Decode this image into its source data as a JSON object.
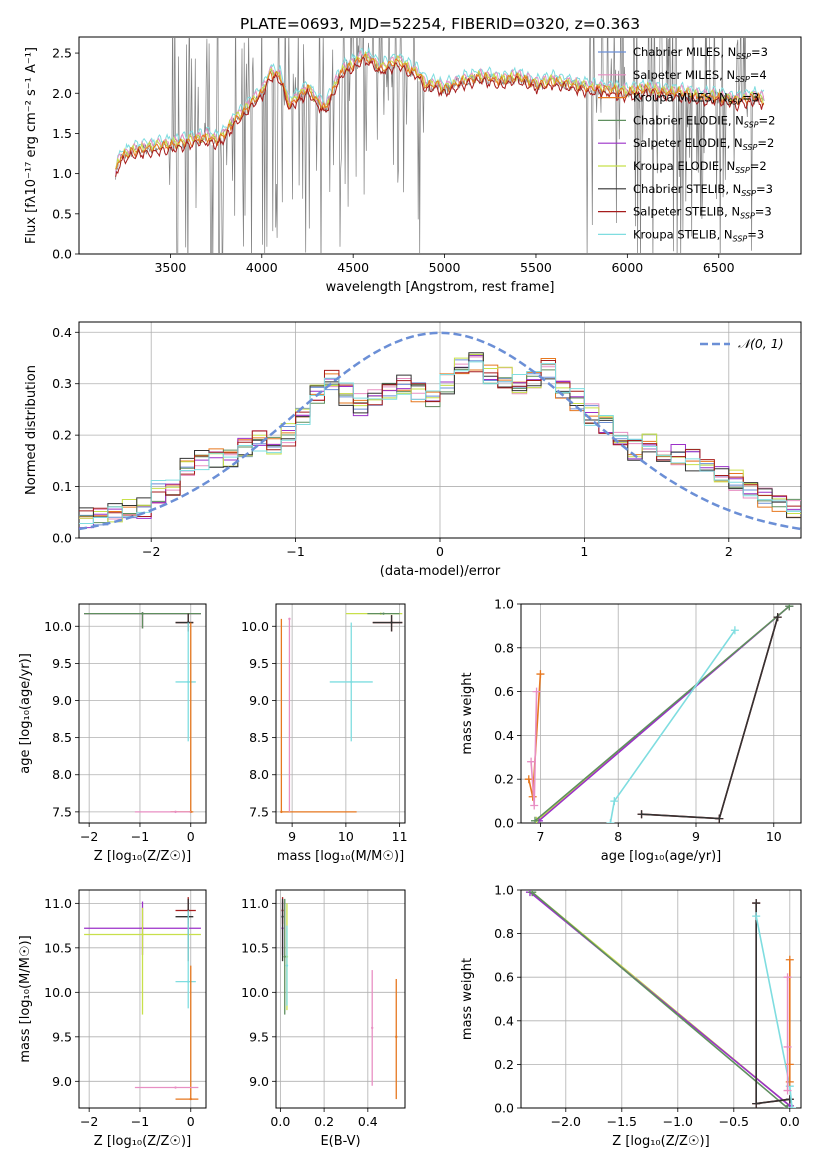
{
  "figure_title": "PLATE=0693, MJD=52254, FIBERID=0320, z=0.363",
  "colors": {
    "Chabrier MILES": "#6b8fd6",
    "Salpeter MILES": "#e88fc3",
    "Kroupa MILES": "#e6771e",
    "Chabrier ELODIE": "#5f8f5f",
    "Salpeter ELODIE": "#9b30c9",
    "Kroupa ELODIE": "#c8e04a",
    "Chabrier STELIB": "#333333",
    "Salpeter STELIB": "#a61c1c",
    "Kroupa STELIB": "#7fdde0",
    "data": "#808080",
    "normal": "#6b8fd6"
  },
  "chart_data": [
    {
      "id": "spectrum",
      "type": "line",
      "xlabel": "wavelength [Angstrom, rest frame]",
      "ylabel": "Flux [f$_\\lambda$10$^{-17}$ erg cm$^{-2}$ s$^{-1}$ A$^{-1}$]",
      "ylabel_display": "Flux [fλ10⁻¹⁷ erg cm⁻² s⁻¹ A⁻¹]",
      "xlim": [
        3000,
        6950
      ],
      "ylim": [
        0,
        2.7
      ],
      "xticks": [
        3500,
        4000,
        4500,
        5000,
        5500,
        6000,
        6500
      ],
      "yticks": [
        0.0,
        0.5,
        1.0,
        1.5,
        2.0,
        2.5
      ],
      "legend": [
        {
          "name": "Chabrier MILES",
          "label": "Chabrier MILES, N",
          "sub": "SSP",
          "tail": "=3"
        },
        {
          "name": "Salpeter MILES",
          "label": "Salpeter MILES, N",
          "sub": "SSP",
          "tail": "=4"
        },
        {
          "name": "Kroupa MILES",
          "label": "Kroupa MILES, N",
          "sub": "SSP",
          "tail": "=3"
        },
        {
          "name": "Chabrier ELODIE",
          "label": "Chabrier ELODIE, N",
          "sub": "SSP",
          "tail": "=2"
        },
        {
          "name": "Salpeter ELODIE",
          "label": "Salpeter ELODIE, N",
          "sub": "SSP",
          "tail": "=2"
        },
        {
          "name": "Kroupa ELODIE",
          "label": "Kroupa ELODIE, N",
          "sub": "SSP",
          "tail": "=2"
        },
        {
          "name": "Chabrier STELIB",
          "label": "Chabrier STELIB, N",
          "sub": "SSP",
          "tail": "=3"
        },
        {
          "name": "Salpeter STELIB",
          "label": "Salpeter STELIB, N",
          "sub": "SSP",
          "tail": "=3"
        },
        {
          "name": "Kroupa STELIB",
          "label": "Kroupa STELIB, N",
          "sub": "SSP",
          "tail": "=3"
        }
      ],
      "legend_position": "top-right",
      "model_envelope": {
        "wavelength": [
          3200,
          3210,
          3230,
          3300,
          3400,
          3500,
          3600,
          3700,
          3760,
          3800,
          3850,
          3900,
          3950,
          4000,
          4050,
          4100,
          4150,
          4200,
          4250,
          4300,
          4350,
          4400,
          4450,
          4500,
          4550,
          4600,
          4650,
          4700,
          4750,
          4800,
          4850,
          4900,
          4950,
          5000,
          5100,
          5200,
          5300,
          5400,
          5500,
          5600,
          5700,
          5800,
          5900,
          6000,
          6100,
          6200,
          6300,
          6400,
          6500,
          6600,
          6700,
          6750
        ],
        "flux": [
          1.0,
          1.1,
          1.2,
          1.28,
          1.32,
          1.35,
          1.4,
          1.45,
          1.4,
          1.5,
          1.65,
          1.75,
          1.9,
          2.0,
          2.25,
          2.2,
          1.85,
          1.95,
          2.05,
          1.9,
          1.8,
          2.1,
          2.3,
          2.35,
          2.45,
          2.4,
          2.3,
          2.35,
          2.4,
          2.3,
          2.25,
          2.1,
          2.1,
          2.05,
          2.15,
          2.2,
          2.15,
          2.2,
          2.1,
          2.15,
          2.1,
          2.05,
          2.05,
          2.0,
          2.05,
          2.0,
          2.0,
          1.95,
          1.95,
          1.9,
          1.95,
          1.9
        ]
      },
      "data_range": [
        3200,
        6750
      ]
    },
    {
      "id": "residuals",
      "type": "histogram",
      "xlabel": "(data-model)/error",
      "ylabel": "Normed distribution",
      "xlim": [
        -2.5,
        2.5
      ],
      "ylim": [
        0,
        0.42
      ],
      "xticks": [
        -2,
        -1,
        0,
        1,
        2
      ],
      "yticks": [
        0.0,
        0.1,
        0.2,
        0.3,
        0.4
      ],
      "bins": [
        -2.5,
        -2.4,
        -2.3,
        -2.2,
        -2.1,
        -2.0,
        -1.9,
        -1.8,
        -1.7,
        -1.6,
        -1.5,
        -1.4,
        -1.3,
        -1.2,
        -1.1,
        -1.0,
        -0.9,
        -0.8,
        -0.7,
        -0.6,
        -0.5,
        -0.4,
        -0.3,
        -0.2,
        -0.1,
        0.0,
        0.1,
        0.2,
        0.3,
        0.4,
        0.5,
        0.6,
        0.7,
        0.8,
        0.9,
        1.0,
        1.1,
        1.2,
        1.3,
        1.4,
        1.5,
        1.6,
        1.7,
        1.8,
        1.9,
        2.0,
        2.1,
        2.2,
        2.3,
        2.4,
        2.5
      ],
      "hist_mean": [
        0.04,
        0.045,
        0.05,
        0.055,
        0.06,
        0.09,
        0.1,
        0.14,
        0.15,
        0.16,
        0.16,
        0.18,
        0.19,
        0.18,
        0.2,
        0.24,
        0.28,
        0.31,
        0.28,
        0.26,
        0.28,
        0.29,
        0.3,
        0.28,
        0.27,
        0.3,
        0.33,
        0.34,
        0.32,
        0.31,
        0.3,
        0.31,
        0.33,
        0.29,
        0.27,
        0.24,
        0.22,
        0.19,
        0.17,
        0.18,
        0.16,
        0.16,
        0.15,
        0.14,
        0.12,
        0.11,
        0.09,
        0.08,
        0.07,
        0.06
      ],
      "normal_label": "𝒩(0, 1)",
      "normal_mu": 0,
      "normal_sigma": 1,
      "legend_position": "top-right"
    },
    {
      "id": "z-age",
      "type": "errorbar",
      "xlabel": "Z [log₁₀(Z/Z☉)]",
      "ylabel": "age  [log₁₀(age/yr)]",
      "xlim": [
        -2.2,
        0.3
      ],
      "ylim": [
        7.35,
        10.3
      ],
      "xticks": [
        -2,
        -1,
        0
      ],
      "yticks": [
        7.5,
        8.0,
        8.5,
        9.0,
        9.5,
        10.0
      ],
      "ytick_labels": [
        "7.5",
        "8.0",
        "8.5",
        "9.0",
        "9.5",
        "10.0"
      ],
      "series": [
        {
          "name": "Kroupa ELODIE",
          "x": -0.95,
          "xerr": [
            1.15,
            1.15
          ],
          "y": 10.17,
          "yerr": [
            0.2,
            0.02
          ]
        },
        {
          "name": "Salpeter ELODIE",
          "x": -0.95,
          "xerr": [
            1.15,
            1.15
          ],
          "y": 10.17,
          "yerr": [
            0.2,
            0.02
          ]
        },
        {
          "name": "Chabrier ELODIE",
          "x": -0.95,
          "xerr": [
            1.15,
            1.15
          ],
          "y": 10.17,
          "yerr": [
            0.2,
            0.02
          ]
        },
        {
          "name": "Salpeter STELIB",
          "x": -0.05,
          "xerr": [
            0.25,
            0.1
          ],
          "y": 10.05,
          "yerr": [
            0.12,
            0.12
          ]
        },
        {
          "name": "Chabrier STELIB",
          "x": -0.05,
          "xerr": [
            0.25,
            0.1
          ],
          "y": 10.05,
          "yerr": [
            0.12,
            0.12
          ]
        },
        {
          "name": "Kroupa STELIB",
          "x": -0.05,
          "xerr": [
            0.25,
            0.15
          ],
          "y": 9.25,
          "yerr": [
            0.8,
            0.8
          ]
        },
        {
          "name": "Kroupa MILES",
          "x": 0.0,
          "xerr": [
            0.4,
            0.05
          ],
          "y": 7.5,
          "yerr": [
            0.0,
            2.55
          ]
        },
        {
          "name": "Salpeter MILES",
          "x": -0.3,
          "xerr": [
            0.8,
            0.3
          ],
          "y": 7.5,
          "yerr": [
            0.0,
            0.0
          ]
        }
      ]
    },
    {
      "id": "mass-age",
      "type": "errorbar",
      "xlabel": "mass [log₁₀(M/M☉)]",
      "ylabel": "",
      "xlim": [
        8.7,
        11.1
      ],
      "ylim": [
        7.35,
        10.3
      ],
      "xticks": [
        9,
        10,
        11
      ],
      "yticks": [
        7.5,
        8.0,
        8.5,
        9.0,
        9.5,
        10.0
      ],
      "ytick_labels": [
        "7.5",
        "8.0",
        "8.5",
        "9.0",
        "9.5",
        "10.0"
      ],
      "series": [
        {
          "name": "Kroupa ELODIE",
          "x": 10.65,
          "xerr": [
            0.0,
            0.0
          ],
          "y": 10.17,
          "yerr": [
            0.0,
            0.0
          ],
          "xspan": [
            10.0,
            11.05
          ]
        },
        {
          "name": "Chabrier ELODIE",
          "x": 10.7,
          "xerr": [
            0.3,
            0.3
          ],
          "y": 10.17,
          "yerr": [
            0.0,
            0.0
          ]
        },
        {
          "name": "Salpeter STELIB",
          "x": 10.85,
          "xerr": [
            0.35,
            0.2
          ],
          "y": 10.05,
          "yerr": [
            0.12,
            0.1
          ]
        },
        {
          "name": "Chabrier STELIB",
          "x": 10.85,
          "xerr": [
            0.35,
            0.2
          ],
          "y": 10.05,
          "yerr": [
            0.12,
            0.1
          ]
        },
        {
          "name": "Kroupa STELIB",
          "x": 10.1,
          "xerr": [
            0.4,
            0.4
          ],
          "y": 9.25,
          "yerr": [
            0.8,
            0.8
          ]
        },
        {
          "name": "Kroupa MILES",
          "x": 8.8,
          "xerr": [
            0.0,
            1.4
          ],
          "y": 7.5,
          "yerr": [
            0.0,
            2.6
          ]
        },
        {
          "name": "Salpeter MILES",
          "x": 8.95,
          "xerr": [
            0.0,
            0.0
          ],
          "y": 10.1,
          "yerr": [
            2.6,
            0.0
          ]
        }
      ]
    },
    {
      "id": "age-weight",
      "type": "line",
      "xlabel": "age  [log₁₀(age/yr)]",
      "ylabel": "mass weight",
      "xlim": [
        6.75,
        10.35
      ],
      "ylim": [
        0,
        1.0
      ],
      "xticks": [
        7,
        8,
        9,
        10
      ],
      "yticks": [
        0.0,
        0.2,
        0.4,
        0.6,
        0.8,
        1.0
      ],
      "series": [
        {
          "name": "Kroupa ELODIE",
          "x": [
            6.95,
            10.2
          ],
          "y": [
            0.01,
            0.99
          ]
        },
        {
          "name": "Salpeter ELODIE",
          "x": [
            6.98,
            10.2
          ],
          "y": [
            0.01,
            0.99
          ]
        },
        {
          "name": "Chabrier ELODIE",
          "x": [
            6.93,
            10.2
          ],
          "y": [
            0.01,
            0.99
          ]
        },
        {
          "name": "Salpeter STELIB",
          "x": [
            8.3,
            9.3,
            10.05
          ],
          "y": [
            0.04,
            0.02,
            0.94
          ]
        },
        {
          "name": "Chabrier STELIB",
          "x": [
            8.3,
            9.3,
            10.05
          ],
          "y": [
            0.04,
            0.02,
            0.94
          ]
        },
        {
          "name": "Kroupa STELIB",
          "x": [
            7.9,
            7.95,
            9.5
          ],
          "y": [
            0.0,
            0.1,
            0.88
          ]
        },
        {
          "name": "Kroupa MILES",
          "x": [
            6.85,
            6.9,
            7.0
          ],
          "y": [
            0.2,
            0.12,
            0.68
          ]
        },
        {
          "name": "Salpeter MILES",
          "x": [
            6.88,
            6.92,
            6.95
          ],
          "y": [
            0.28,
            0.08,
            0.6
          ]
        }
      ]
    },
    {
      "id": "z-mass",
      "type": "errorbar",
      "xlabel": "Z [log₁₀(Z/Z☉)]",
      "ylabel": "mass [log₁₀(M/M☉)]",
      "xlim": [
        -2.2,
        0.3
      ],
      "ylim": [
        8.7,
        11.15
      ],
      "xticks": [
        -2,
        -1,
        0
      ],
      "yticks": [
        9.0,
        9.5,
        10.0,
        10.5,
        11.0
      ],
      "ytick_labels": [
        "9.0",
        "9.5",
        "10.0",
        "10.5",
        "11.0"
      ],
      "series": [
        {
          "name": "Salpeter ELODIE",
          "x": -0.95,
          "xerr": [
            1.15,
            1.15
          ],
          "y": 10.72,
          "yerr": [
            0.3,
            0.3
          ]
        },
        {
          "name": "Kroupa ELODIE",
          "x": -0.95,
          "xerr": [
            1.15,
            1.15
          ],
          "y": 10.65,
          "yerr": [
            0.9,
            0.3
          ]
        },
        {
          "name": "Salpeter STELIB",
          "x": -0.05,
          "xerr": [
            0.25,
            0.15
          ],
          "y": 10.92,
          "yerr": [
            0.15,
            0.15
          ]
        },
        {
          "name": "Chabrier STELIB",
          "x": -0.05,
          "xerr": [
            0.25,
            0.1
          ],
          "y": 10.85,
          "yerr": [
            0.5,
            0.2
          ]
        },
        {
          "name": "Kroupa STELIB",
          "x": -0.05,
          "xerr": [
            0.25,
            0.15
          ],
          "y": 10.12,
          "yerr": [
            0.3,
            0.8
          ]
        },
        {
          "name": "Kroupa MILES",
          "x": 0.0,
          "xerr": [
            0.3,
            0.15
          ],
          "y": 8.8,
          "yerr": [
            0.0,
            1.5
          ]
        },
        {
          "name": "Salpeter MILES",
          "x": -0.3,
          "xerr": [
            0.8,
            0.45
          ],
          "y": 8.93,
          "yerr": [
            0.0,
            0.0
          ]
        }
      ]
    },
    {
      "id": "ebv-mass",
      "type": "errorbar",
      "xlabel": "E(B-V)",
      "ylabel": "",
      "xlim": [
        -0.02,
        0.57
      ],
      "ylim": [
        8.7,
        11.15
      ],
      "xticks": [
        0.0,
        0.2,
        0.4
      ],
      "xtick_labels": [
        "0.0",
        "0.2",
        "0.4"
      ],
      "yticks": [
        9.0,
        9.5,
        10.0,
        10.5,
        11.0
      ],
      "ytick_labels": [
        "9.0",
        "9.5",
        "10.0",
        "10.5",
        "11.0"
      ],
      "series": [
        {
          "name": "Salpeter ELODIE",
          "x": 0.01,
          "y": 10.72,
          "yerr": [
            0.3,
            0.3
          ]
        },
        {
          "name": "Kroupa ELODIE",
          "x": 0.03,
          "y": 10.4,
          "yerr": [
            0.6,
            0.6
          ]
        },
        {
          "name": "Chabrier ELODIE",
          "x": 0.02,
          "y": 10.4,
          "yerr": [
            0.65,
            0.65
          ]
        },
        {
          "name": "Salpeter STELIB",
          "x": 0.01,
          "y": 10.92,
          "yerr": [
            0.15,
            0.15
          ]
        },
        {
          "name": "Chabrier STELIB",
          "x": 0.01,
          "y": 10.85,
          "yerr": [
            0.5,
            0.2
          ]
        },
        {
          "name": "Kroupa STELIB",
          "x": 0.03,
          "y": 10.3,
          "yerr": [
            0.45,
            0.45
          ]
        },
        {
          "name": "Salpeter MILES",
          "x": 0.42,
          "y": 9.6,
          "yerr": [
            0.65,
            0.65
          ]
        },
        {
          "name": "Kroupa MILES",
          "x": 0.53,
          "y": 9.5,
          "yerr": [
            0.7,
            0.65
          ]
        }
      ]
    },
    {
      "id": "z-weight",
      "type": "line",
      "xlabel": "Z [log₁₀(Z/Z☉)]",
      "ylabel": "mass weight",
      "xlim": [
        -2.4,
        0.1
      ],
      "ylim": [
        0,
        1.0
      ],
      "xticks": [
        -2.0,
        -1.5,
        -1.0,
        -0.5,
        0.0
      ],
      "xtick_labels": [
        "−2.0",
        "−1.5",
        "−1.0",
        "−0.5",
        "0.0"
      ],
      "yticks": [
        0.0,
        0.2,
        0.4,
        0.6,
        0.8,
        1.0
      ],
      "series": [
        {
          "name": "Kroupa ELODIE",
          "x": [
            -2.3,
            0.0
          ],
          "y": [
            0.99,
            0.01
          ]
        },
        {
          "name": "Salpeter ELODIE",
          "x": [
            -2.32,
            0.0
          ],
          "y": [
            0.99,
            0.01
          ]
        },
        {
          "name": "Chabrier ELODIE",
          "x": [
            -2.3,
            -0.02
          ],
          "y": [
            0.99,
            0.0
          ]
        },
        {
          "name": "Salpeter STELIB",
          "x": [
            -0.3,
            -0.3,
            0.0
          ],
          "y": [
            0.94,
            0.02,
            0.04
          ]
        },
        {
          "name": "Chabrier STELIB",
          "x": [
            -0.3,
            -0.3,
            0.0
          ],
          "y": [
            0.94,
            0.02,
            0.04
          ]
        },
        {
          "name": "Kroupa STELIB",
          "x": [
            -0.3,
            0.0,
            0.02
          ],
          "y": [
            0.88,
            0.1,
            0.0
          ]
        },
        {
          "name": "Kroupa MILES",
          "x": [
            0.0,
            0.0,
            0.0
          ],
          "y": [
            0.68,
            0.2,
            0.12
          ]
        },
        {
          "name": "Salpeter MILES",
          "x": [
            -0.02,
            -0.02,
            -0.02
          ],
          "y": [
            0.6,
            0.28,
            0.08
          ]
        }
      ]
    }
  ]
}
